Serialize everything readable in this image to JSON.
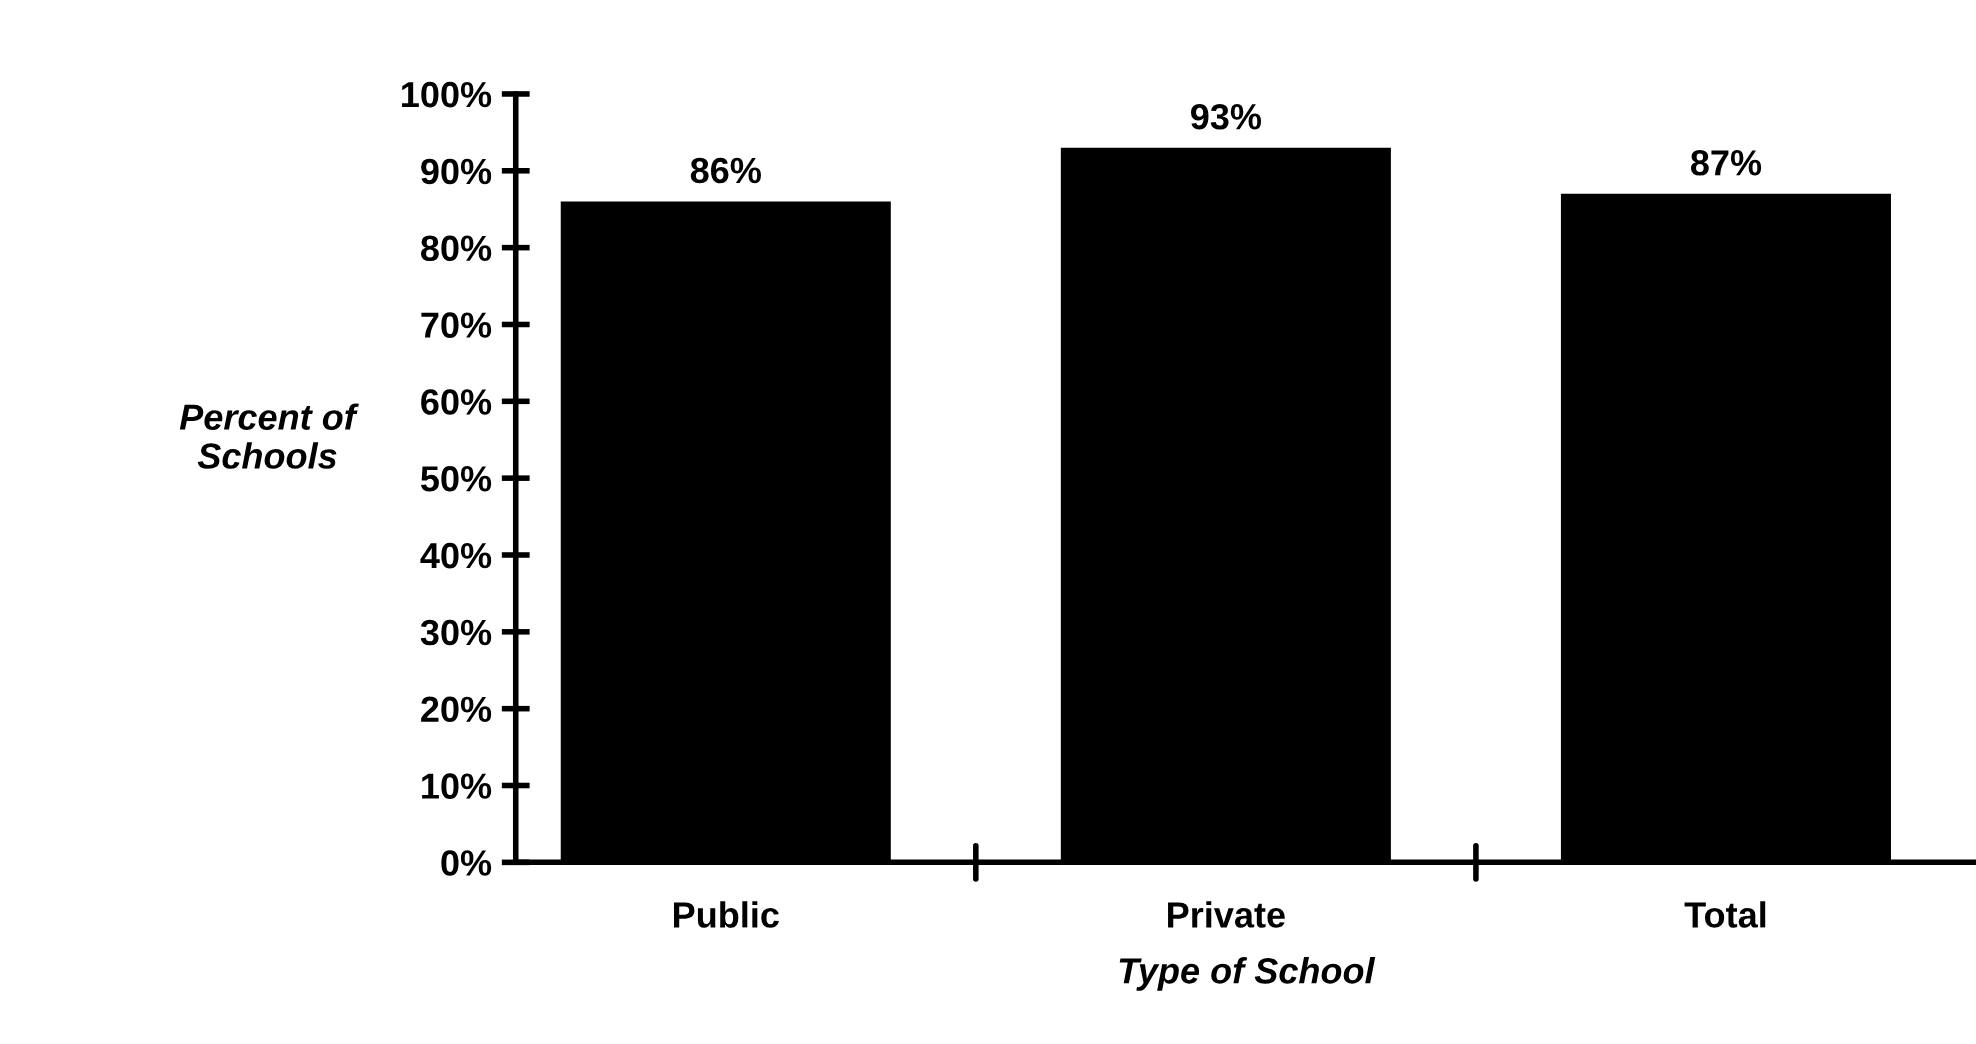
{
  "chart_data": {
    "type": "bar",
    "xlabel": "Type of School",
    "ylabel": "Percent of\nSchools",
    "categories": [
      "Public",
      "Private",
      "Total"
    ],
    "values": [
      86,
      93,
      87
    ],
    "color": "#000000",
    "value_labels": [
      "86%",
      "93%",
      "87%"
    ],
    "ylim": [
      0,
      100
    ],
    "yticks": [
      {
        "value": 0,
        "label": "0%"
      },
      {
        "value": 10,
        "label": "10%"
      },
      {
        "value": 20,
        "label": "20%"
      },
      {
        "value": 30,
        "label": "30%"
      },
      {
        "value": 40,
        "label": "40%"
      },
      {
        "value": 50,
        "label": "50%"
      },
      {
        "value": 60,
        "label": "60%"
      },
      {
        "value": 70,
        "label": "70%"
      },
      {
        "value": 80,
        "label": "80%"
      },
      {
        "value": 90,
        "label": "90%"
      },
      {
        "value": 100,
        "label": "100%"
      }
    ],
    "grid": false,
    "legend": false
  }
}
